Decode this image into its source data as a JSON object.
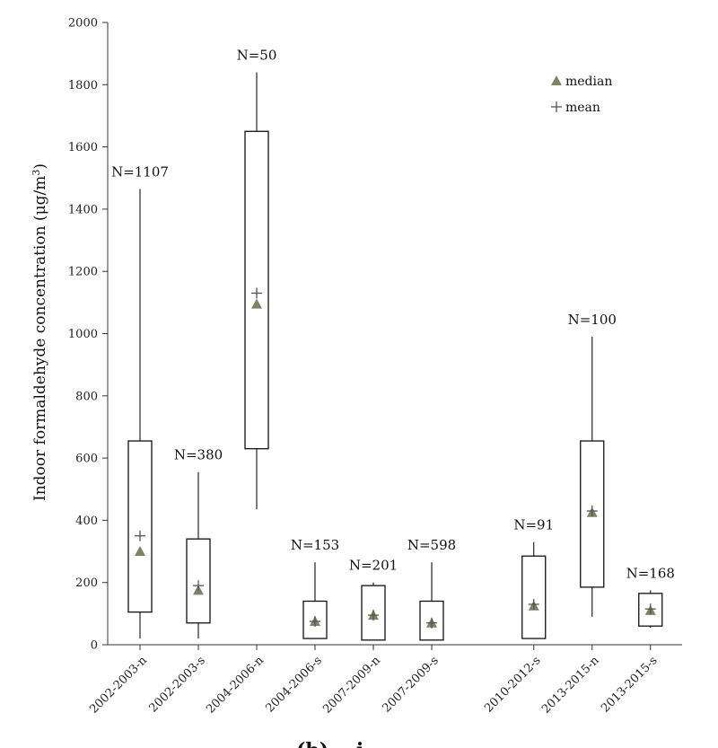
{
  "chart_data": {
    "type": "boxplot",
    "ylabel": "Indoor formaldehyde concentration (μg/m",
    "ylabel_sup": "3",
    "ylabel_close": ")",
    "ylim": [
      0,
      2000
    ],
    "yticks": [
      0,
      200,
      400,
      600,
      800,
      1000,
      1200,
      1400,
      1600,
      1800,
      2000
    ],
    "grid": false,
    "legend": {
      "placement": "top-right",
      "median_label": "median",
      "mean_label": "mean"
    },
    "caption": "(b) ...i...",
    "colors": {
      "median_marker": "#7d8462",
      "mean_marker": "#555555",
      "box": "#111111"
    },
    "groups": [
      {
        "category": "2002-2003-n",
        "n_label": "N=1107",
        "whisker_low": 20,
        "q1": 105,
        "q3": 655,
        "whisker_high": 1465,
        "median": 300,
        "mean": 350,
        "pos": 0
      },
      {
        "category": "2002-2003-s",
        "n_label": "N=380",
        "whisker_low": 20,
        "q1": 70,
        "q3": 340,
        "whisker_high": 555,
        "median": 175,
        "mean": 190,
        "pos": 1
      },
      {
        "category": "2004-2006-n",
        "n_label": "N=50",
        "whisker_low": 435,
        "q1": 630,
        "q3": 1650,
        "whisker_high": 1840,
        "median": 1095,
        "mean": 1130,
        "pos": 2
      },
      {
        "category": "2004-2006-s",
        "n_label": "N=153",
        "whisker_low": 20,
        "q1": 20,
        "q3": 140,
        "whisker_high": 265,
        "median": 75,
        "mean": 75,
        "pos": 3
      },
      {
        "category": "2007-2009-n",
        "n_label": "N=201",
        "whisker_low": 15,
        "q1": 15,
        "q3": 190,
        "whisker_high": 200,
        "median": 95,
        "mean": 95,
        "pos": 4
      },
      {
        "category": "2007-2009-s",
        "n_label": "N=598",
        "whisker_low": 15,
        "q1": 15,
        "q3": 140,
        "whisker_high": 265,
        "median": 70,
        "mean": 70,
        "pos": 5
      },
      {
        "category": "2010-2012-s",
        "n_label": "N=91",
        "whisker_low": 20,
        "q1": 20,
        "q3": 285,
        "whisker_high": 330,
        "median": 125,
        "mean": 130,
        "pos": 6.75
      },
      {
        "category": "2013-2015-n",
        "n_label": "N=100",
        "whisker_low": 90,
        "q1": 185,
        "q3": 655,
        "whisker_high": 990,
        "median": 425,
        "mean": 430,
        "pos": 7.75
      },
      {
        "category": "2013-2015-s",
        "n_label": "N=168",
        "whisker_low": 55,
        "q1": 60,
        "q3": 165,
        "whisker_high": 175,
        "median": 110,
        "mean": 115,
        "pos": 8.75
      }
    ]
  }
}
